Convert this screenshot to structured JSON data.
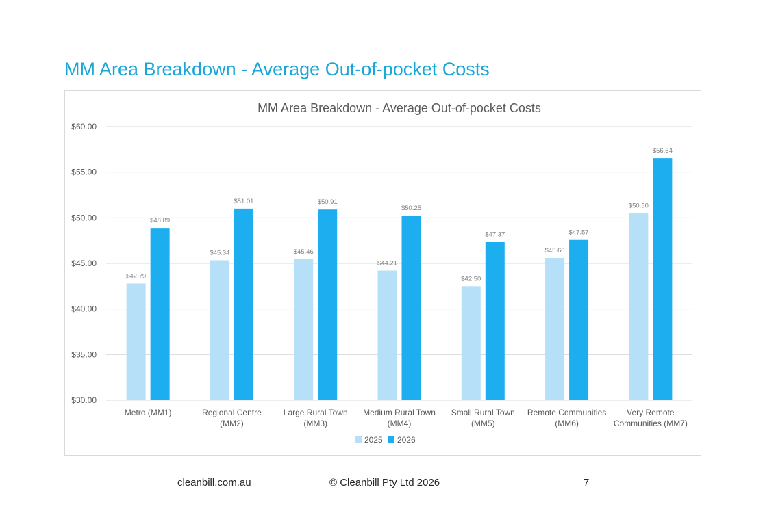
{
  "page": {
    "heading": "MM Area Breakdown - Average Out-of-pocket Costs",
    "footer": {
      "site": "cleanbill.com.au",
      "copyright": "© Cleanbill Pty Ltd 2026",
      "page_number": "7"
    }
  },
  "chart_data": {
    "type": "bar",
    "title": "MM Area Breakdown - Average Out-of-pocket Costs",
    "xlabel": "",
    "ylabel": "",
    "ylim": [
      30,
      60
    ],
    "yticks": [
      30,
      35,
      40,
      45,
      50,
      55,
      60
    ],
    "ytick_labels": [
      "$30.00",
      "$35.00",
      "$40.00",
      "$45.00",
      "$50.00",
      "$55.00",
      "$60.00"
    ],
    "grid": true,
    "legend_position": "bottom",
    "categories": [
      [
        "Metro (MM1)"
      ],
      [
        "Regional Centre",
        "(MM2)"
      ],
      [
        "Large Rural Town",
        "(MM3)"
      ],
      [
        "Medium Rural Town",
        "(MM4)"
      ],
      [
        "Small Rural Town",
        "(MM5)"
      ],
      [
        "Remote Communities",
        "(MM6)"
      ],
      [
        "Very Remote",
        "Communities (MM7)"
      ]
    ],
    "series": [
      {
        "name": "2025",
        "color": "#b5e0f8",
        "values": [
          42.79,
          45.34,
          45.46,
          44.21,
          42.5,
          45.6,
          50.5
        ],
        "labels": [
          "$42.79",
          "$45.34",
          "$45.46",
          "$44.21",
          "$42.50",
          "$45.60",
          "$50.50"
        ]
      },
      {
        "name": "2026",
        "color": "#1daef0",
        "values": [
          48.89,
          51.01,
          50.91,
          50.25,
          47.37,
          47.57,
          56.54
        ],
        "labels": [
          "$48.89",
          "$51.01",
          "$50.91",
          "$50.25",
          "$47.37",
          "$47.57",
          "$56.54"
        ]
      }
    ],
    "colors": {
      "gridline": "#d9d9d9",
      "axis_text": "#595959",
      "data_label": "#7f7f7f"
    }
  }
}
